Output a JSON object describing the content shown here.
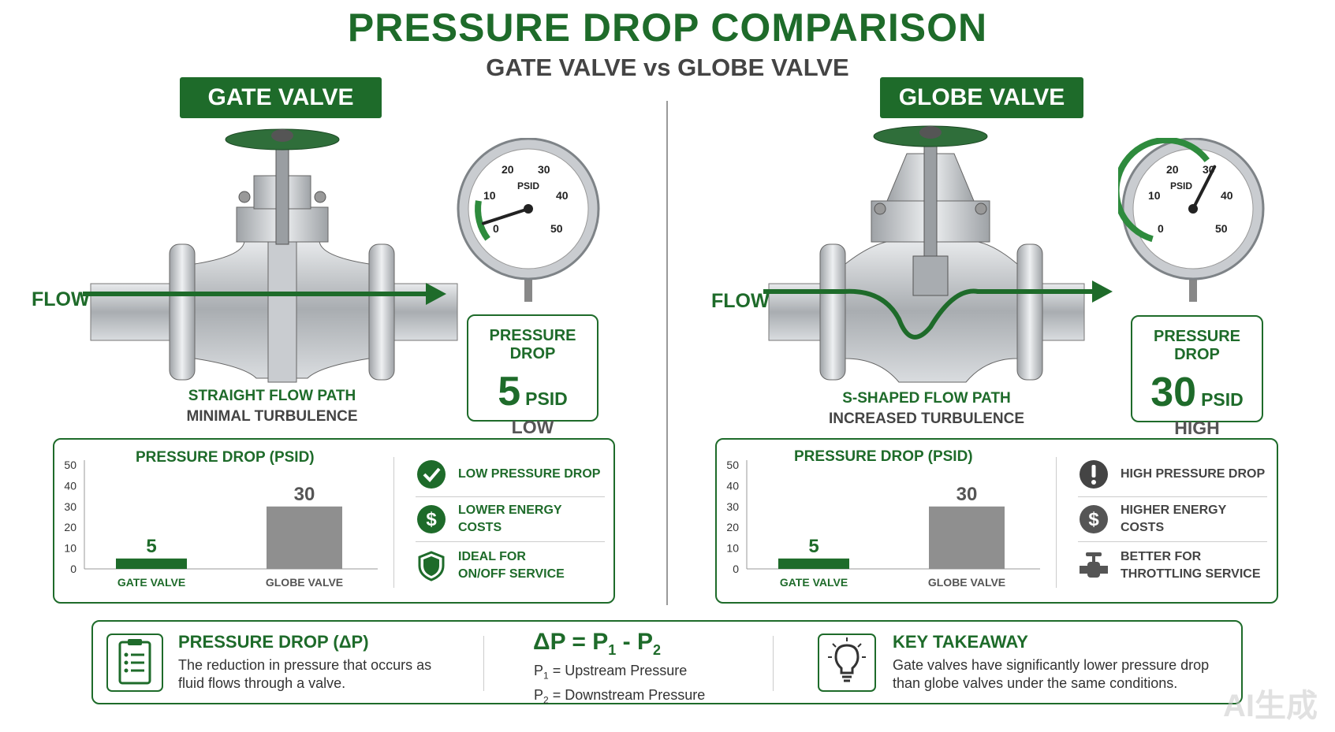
{
  "header": {
    "title": "PRESSURE DROP COMPARISON",
    "subtitle": "GATE VALVE vs GLOBE VALVE"
  },
  "colors": {
    "brand_green": "#1e6b2a",
    "bar_grey": "#8f8f8f",
    "steel": "#b8bcc0"
  },
  "gate": {
    "label": "GATE VALVE",
    "flow_label": "FLOW",
    "path_line1": "STRAIGHT FLOW PATH",
    "path_line2": "MINIMAL TURBULENCE",
    "gauge": {
      "unit": "PSID",
      "ticks": [
        "0",
        "10",
        "20",
        "30",
        "40",
        "50"
      ],
      "reading": 5
    },
    "pressure_box": {
      "heading": "PRESSURE DROP",
      "value": "5",
      "unit": "PSID",
      "level": "LOW"
    },
    "features": [
      {
        "icon": "check-circle-icon",
        "lines": [
          "LOW PRESSURE DROP"
        ]
      },
      {
        "icon": "dollar-coin-icon",
        "lines": [
          "LOWER ENERGY COSTS"
        ]
      },
      {
        "icon": "shield-check-icon",
        "lines": [
          "IDEAL FOR",
          "ON/OFF SERVICE"
        ]
      }
    ]
  },
  "globe": {
    "label": "GLOBE VALVE",
    "flow_label": "FLOW",
    "path_line1": "S-SHAPED FLOW PATH",
    "path_line2": "INCREASED TURBULENCE",
    "gauge": {
      "unit": "PSID",
      "ticks": [
        "0",
        "10",
        "20",
        "30",
        "40",
        "50"
      ],
      "reading": 30
    },
    "pressure_box": {
      "heading": "PRESSURE DROP",
      "value": "30",
      "unit": "PSID",
      "level": "HIGH"
    },
    "features": [
      {
        "icon": "exclamation-circle-icon",
        "lines": [
          "HIGH PRESSURE DROP"
        ]
      },
      {
        "icon": "dollar-coin-icon",
        "lines": [
          "HIGHER ENERGY COSTS"
        ]
      },
      {
        "icon": "valve-icon",
        "lines": [
          "BETTER FOR",
          "THROTTLING SERVICE"
        ]
      }
    ]
  },
  "chart_data": [
    {
      "type": "bar",
      "title": "PRESSURE DROP (PSID)",
      "categories": [
        "GATE VALVE",
        "GLOBE VALVE"
      ],
      "values": [
        5,
        30
      ],
      "data_labels": [
        "5",
        "30"
      ],
      "bar_colors": [
        "#1e6b2a",
        "#8f8f8f"
      ],
      "ylim": [
        0,
        50
      ],
      "yticks": [
        "0",
        "10",
        "20",
        "30",
        "40",
        "50"
      ],
      "xlabel": "",
      "ylabel": "",
      "grid": false
    },
    {
      "type": "bar",
      "title": "PRESSURE DROP (PSID)",
      "categories": [
        "GATE VALVE",
        "GLOBE VALVE"
      ],
      "values": [
        5,
        30
      ],
      "data_labels": [
        "5",
        "30"
      ],
      "bar_colors": [
        "#1e6b2a",
        "#8f8f8f"
      ],
      "ylim": [
        0,
        50
      ],
      "yticks": [
        "0",
        "10",
        "20",
        "30",
        "40",
        "50"
      ],
      "xlabel": "",
      "ylabel": "",
      "grid": false
    }
  ],
  "bottom": {
    "definition": {
      "icon": "clipboard-list-icon",
      "heading": "PRESSURE DROP (ΔP)",
      "body": [
        "The reduction in pressure that occurs as",
        "fluid flows through a valve."
      ]
    },
    "formula": {
      "lhs": "ΔP",
      "eq": "=",
      "p1": "P",
      "sub1": "1",
      "minus": "-",
      "p2": "P",
      "sub2": "2",
      "def1_p": "P",
      "def1_sub": "1",
      "def1_text": "= Upstream Pressure",
      "def2_p": "P",
      "def2_sub": "2",
      "def2_text": "= Downstream Pressure"
    },
    "takeaway": {
      "icon": "lightbulb-icon",
      "heading": "KEY TAKEAWAY",
      "body": [
        "Gate valves have significantly lower pressure drop",
        "than globe valves under the same conditions."
      ]
    }
  },
  "watermark": "AI生成"
}
